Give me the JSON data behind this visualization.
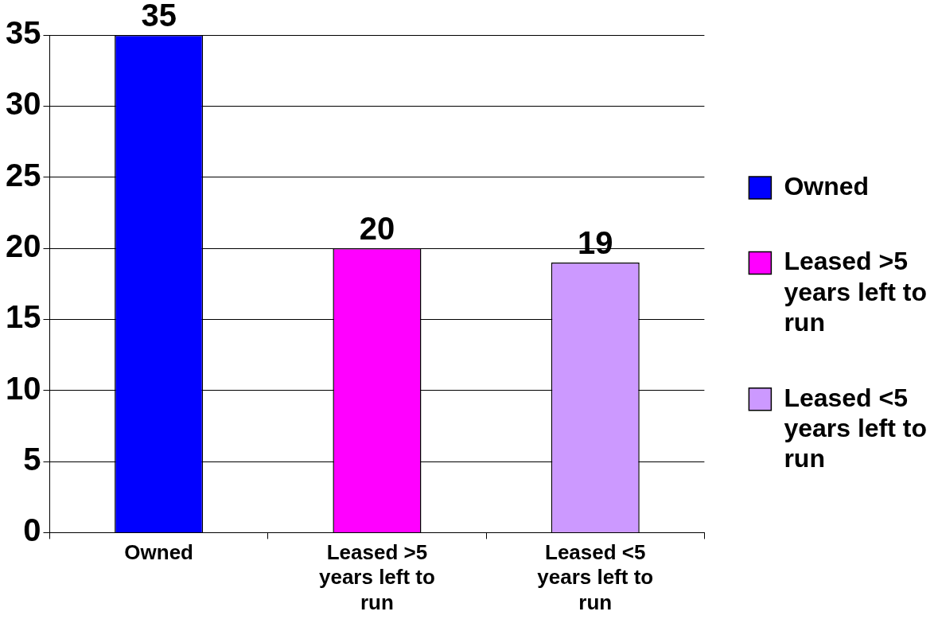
{
  "chart_data": {
    "type": "bar",
    "categories": [
      "Owned",
      "Leased >5 years left to run",
      "Leased <5 years left to run"
    ],
    "series": [
      {
        "name": "Owned",
        "color": "#0000ff",
        "values": [
          35,
          null,
          null
        ]
      },
      {
        "name": "Leased >5 years left to run",
        "color": "#ff00ff",
        "values": [
          null,
          20,
          null
        ]
      },
      {
        "name": "Leased <5 years left to run",
        "color": "#cc99ff",
        "values": [
          null,
          null,
          19
        ]
      }
    ],
    "ylim": [
      0,
      35
    ],
    "yticks": [
      0,
      5,
      10,
      15,
      20,
      25,
      30,
      35
    ],
    "grid": "y",
    "legend": "right",
    "data_labels": true
  }
}
